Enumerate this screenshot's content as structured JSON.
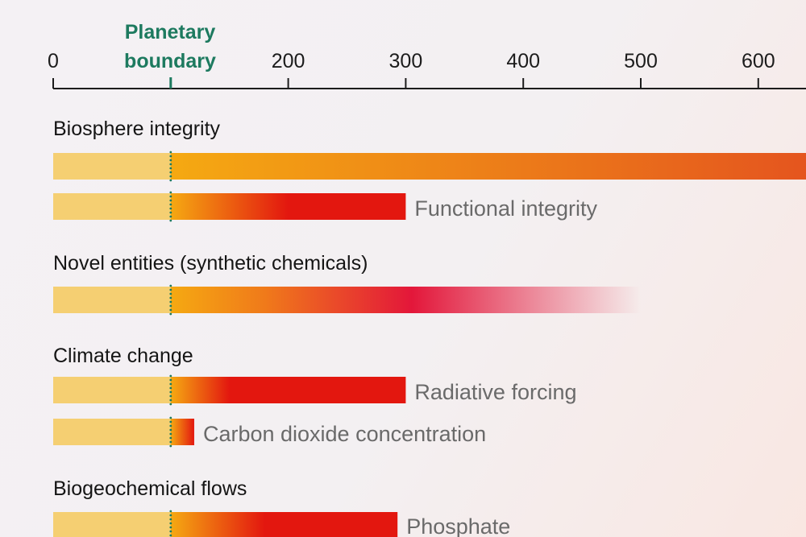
{
  "chart_data": {
    "type": "bar",
    "orientation": "horizontal",
    "x_axis": {
      "ticks": [
        0,
        200,
        300,
        400,
        500,
        600
      ],
      "range": [
        0,
        640
      ],
      "position": "top"
    },
    "boundary": {
      "value": 100,
      "label_line1": "Planetary",
      "label_line2": "boundary",
      "color": "#1d7a5f"
    },
    "groups": [
      {
        "heading": "Biosphere integrity",
        "bars": [
          {
            "label": "",
            "value": 660,
            "end_color": "#e4521f",
            "full_color_at": 660,
            "fade": false
          },
          {
            "label": "Functional integrity",
            "value": 300,
            "end_color": "#e3170f",
            "full_color_at": 200,
            "fade": false
          }
        ]
      },
      {
        "heading": "Novel entities (synthetic chemicals)",
        "bars": [
          {
            "label": "",
            "value": 500,
            "end_color": "#e3173a",
            "full_color_at": 305,
            "fade": true
          }
        ]
      },
      {
        "heading": "Climate change",
        "bars": [
          {
            "label": "Radiative forcing",
            "value": 300,
            "end_color": "#e3170f",
            "full_color_at": 150,
            "fade": false
          },
          {
            "label": "Carbon dioxide concentration",
            "value": 120,
            "end_color": "#e3170f",
            "full_color_at": 120,
            "fade": false
          }
        ]
      },
      {
        "heading": "Biogeochemical flows",
        "bars": [
          {
            "label": "Phosphate",
            "value": 293,
            "end_color": "#e3170f",
            "full_color_at": 180,
            "fade": false
          }
        ]
      }
    ],
    "colors": {
      "safe": "#f5cf72",
      "boundary_start": "#f5a912",
      "axis": "#1c1c1c"
    },
    "grid": false
  }
}
